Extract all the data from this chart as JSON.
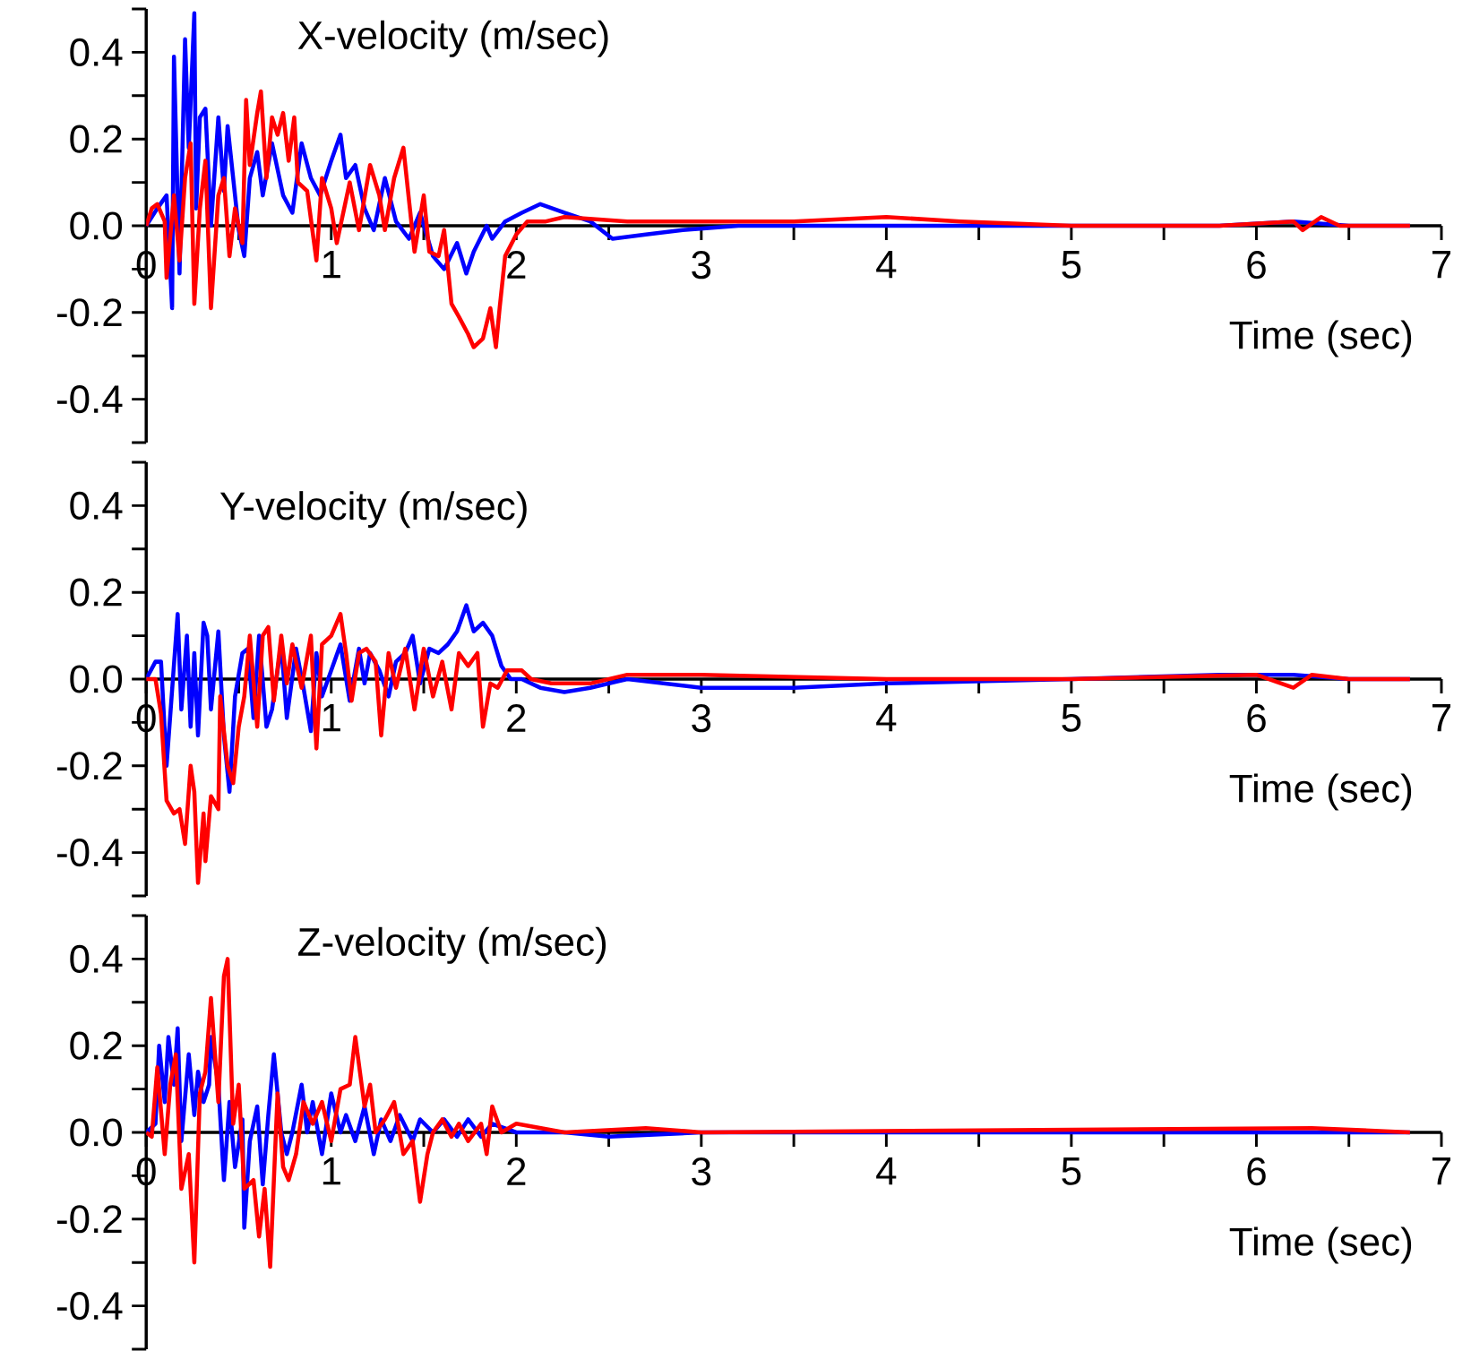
{
  "chart_data": [
    {
      "type": "line",
      "title": "X-velocity (m/sec)",
      "xlabel": "Time (sec)",
      "xlim": [
        0,
        7
      ],
      "ylim": [
        -0.5,
        0.5
      ],
      "xticks": [
        0,
        {
          "value": 0.5,
          "label": null
        },
        1,
        {
          "value": 1.5,
          "label": null
        },
        2,
        {
          "value": 2.5,
          "label": null
        },
        3,
        {
          "value": 3.5,
          "label": null
        },
        4,
        {
          "value": 4.5,
          "label": null
        },
        5,
        {
          "value": 5.5,
          "label": null
        },
        6,
        {
          "value": 6.5,
          "label": null
        },
        7
      ],
      "yticks": [
        {
          "value": -0.5,
          "label": null
        },
        {
          "value": -0.4,
          "label": "-0.4"
        },
        {
          "value": -0.3,
          "label": null
        },
        {
          "value": -0.2,
          "label": "-0.2"
        },
        {
          "value": -0.1,
          "label": null
        },
        {
          "value": 0,
          "label": "0.0"
        },
        {
          "value": 0.1,
          "label": null
        },
        {
          "value": 0.2,
          "label": "0.2"
        },
        {
          "value": 0.3,
          "label": null
        },
        {
          "value": 0.4,
          "label": "0.4"
        },
        {
          "value": 0.5,
          "label": null
        }
      ],
      "series": [
        {
          "color": "#0000ff",
          "x": [
            0,
            0.06,
            0.11,
            0.14,
            0.15,
            0.18,
            0.21,
            0.23,
            0.26,
            0.27,
            0.29,
            0.32,
            0.35,
            0.39,
            0.42,
            0.44,
            0.47,
            0.5,
            0.53,
            0.56,
            0.6,
            0.63,
            0.68,
            0.74,
            0.79,
            0.84,
            0.89,
            0.94,
            1.0,
            1.05,
            1.08,
            1.13,
            1.18,
            1.23,
            1.29,
            1.35,
            1.42,
            1.48,
            1.55,
            1.61,
            1.68,
            1.73,
            1.77,
            1.84,
            1.87,
            1.94,
            2.03,
            2.13,
            2.26,
            2.4,
            2.52,
            2.7,
            2.9,
            3.2,
            4.0,
            5.0,
            5.8,
            6.2,
            6.5,
            6.83
          ],
          "values": [
            0,
            0.04,
            0.07,
            -0.19,
            0.39,
            -0.11,
            0.43,
            0.18,
            0.49,
            0.04,
            0.25,
            0.27,
            0,
            0.25,
            0.08,
            0.23,
            0.11,
            -0.01,
            -0.07,
            0.11,
            0.17,
            0.07,
            0.19,
            0.07,
            0.03,
            0.19,
            0.11,
            0.07,
            0.15,
            0.21,
            0.11,
            0.14,
            0.04,
            -0.01,
            0.11,
            0.01,
            -0.03,
            0.03,
            -0.07,
            -0.1,
            -0.04,
            -0.11,
            -0.06,
            0,
            -0.03,
            0.01,
            0.03,
            0.05,
            0.03,
            0.01,
            -0.03,
            -0.02,
            -0.01,
            0,
            0,
            0,
            0,
            0.01,
            0,
            0
          ]
        },
        {
          "color": "#ff0000",
          "x": [
            0,
            0.03,
            0.06,
            0.1,
            0.11,
            0.15,
            0.18,
            0.21,
            0.24,
            0.26,
            0.29,
            0.32,
            0.35,
            0.39,
            0.42,
            0.45,
            0.48,
            0.52,
            0.54,
            0.56,
            0.6,
            0.62,
            0.65,
            0.68,
            0.71,
            0.74,
            0.77,
            0.8,
            0.82,
            0.87,
            0.92,
            0.95,
            1.0,
            1.03,
            1.1,
            1.15,
            1.21,
            1.26,
            1.29,
            1.34,
            1.39,
            1.42,
            1.45,
            1.5,
            1.53,
            1.58,
            1.61,
            1.65,
            1.69,
            1.74,
            1.77,
            1.82,
            1.86,
            1.89,
            1.91,
            1.94,
            2.0,
            2.06,
            2.16,
            2.26,
            2.6,
            3.0,
            3.5,
            4.0,
            4.4,
            5.0,
            5.8,
            6.2,
            6.25,
            6.35,
            6.45,
            6.83
          ],
          "values": [
            0,
            0.04,
            0.05,
            0.01,
            -0.12,
            0.07,
            -0.08,
            0.11,
            0.19,
            -0.18,
            0.04,
            0.15,
            -0.19,
            0.07,
            0.11,
            -0.07,
            0.04,
            -0.04,
            0.29,
            0.14,
            0.26,
            0.31,
            0.11,
            0.25,
            0.21,
            0.26,
            0.15,
            0.25,
            0.1,
            0.08,
            -0.08,
            0.11,
            0.04,
            -0.04,
            0.1,
            -0.01,
            0.14,
            0.07,
            -0.01,
            0.11,
            0.18,
            0.06,
            -0.06,
            0.07,
            -0.06,
            -0.07,
            -0.01,
            -0.18,
            -0.21,
            -0.25,
            -0.28,
            -0.26,
            -0.19,
            -0.28,
            -0.19,
            -0.07,
            -0.02,
            0.01,
            0.01,
            0.02,
            0.01,
            0.01,
            0.01,
            0.02,
            0.01,
            0,
            0,
            0.01,
            -0.01,
            0.02,
            0,
            0
          ]
        }
      ]
    },
    {
      "type": "line",
      "title": "Y-velocity (m/sec)",
      "xlabel": "Time (sec)",
      "xlim": [
        0,
        7
      ],
      "ylim": [
        -0.5,
        0.5
      ],
      "xticks": [
        0,
        {
          "value": 0.5,
          "label": null
        },
        1,
        {
          "value": 1.5,
          "label": null
        },
        2,
        {
          "value": 2.5,
          "label": null
        },
        3,
        {
          "value": 3.5,
          "label": null
        },
        4,
        {
          "value": 4.5,
          "label": null
        },
        5,
        {
          "value": 5.5,
          "label": null
        },
        6,
        {
          "value": 6.5,
          "label": null
        },
        7
      ],
      "yticks": [
        {
          "value": -0.5,
          "label": null
        },
        {
          "value": -0.4,
          "label": "-0.4"
        },
        {
          "value": -0.3,
          "label": null
        },
        {
          "value": -0.2,
          "label": "-0.2"
        },
        {
          "value": -0.1,
          "label": null
        },
        {
          "value": 0,
          "label": "0.0"
        },
        {
          "value": 0.1,
          "label": null
        },
        {
          "value": 0.2,
          "label": "0.2"
        },
        {
          "value": 0.3,
          "label": null
        },
        {
          "value": 0.4,
          "label": "0.4"
        },
        {
          "value": 0.5,
          "label": null
        }
      ],
      "series": [
        {
          "color": "#0000ff",
          "x": [
            0,
            0.05,
            0.08,
            0.11,
            0.17,
            0.19,
            0.22,
            0.24,
            0.26,
            0.28,
            0.31,
            0.33,
            0.35,
            0.39,
            0.42,
            0.45,
            0.48,
            0.52,
            0.55,
            0.58,
            0.61,
            0.65,
            0.68,
            0.73,
            0.76,
            0.81,
            0.85,
            0.89,
            0.92,
            0.95,
            1.0,
            1.05,
            1.1,
            1.15,
            1.18,
            1.21,
            1.26,
            1.31,
            1.35,
            1.4,
            1.44,
            1.48,
            1.53,
            1.58,
            1.63,
            1.68,
            1.73,
            1.77,
            1.82,
            1.87,
            1.92,
            1.97,
            2.03,
            2.13,
            2.26,
            2.4,
            2.6,
            2.8,
            3.0,
            3.5,
            4.0,
            5.0,
            5.8,
            6.2,
            6.5,
            6.83
          ],
          "values": [
            0,
            0.04,
            0.04,
            -0.2,
            0.15,
            -0.07,
            0.1,
            -0.11,
            0.06,
            -0.13,
            0.13,
            0.1,
            -0.07,
            0.11,
            -0.13,
            -0.26,
            -0.04,
            0.06,
            0.07,
            -0.09,
            0.1,
            -0.11,
            -0.07,
            0.08,
            -0.09,
            0.07,
            -0.02,
            -0.12,
            0.06,
            -0.04,
            0.02,
            0.08,
            -0.05,
            0.07,
            -0.01,
            0.06,
            0.02,
            -0.04,
            0.04,
            0.06,
            0.1,
            -0.01,
            0.07,
            0.06,
            0.08,
            0.11,
            0.17,
            0.11,
            0.13,
            0.1,
            0.03,
            0,
            0,
            -0.02,
            -0.03,
            -0.02,
            0,
            -0.01,
            -0.02,
            -0.02,
            -0.01,
            0,
            0.01,
            0.01,
            0,
            0
          ]
        },
        {
          "color": "#ff0000",
          "x": [
            0,
            0.05,
            0.08,
            0.11,
            0.15,
            0.18,
            0.21,
            0.24,
            0.26,
            0.28,
            0.31,
            0.32,
            0.35,
            0.39,
            0.4,
            0.44,
            0.47,
            0.5,
            0.53,
            0.56,
            0.6,
            0.63,
            0.66,
            0.69,
            0.73,
            0.76,
            0.79,
            0.84,
            0.89,
            0.92,
            0.95,
            1.0,
            1.05,
            1.08,
            1.11,
            1.15,
            1.19,
            1.24,
            1.27,
            1.31,
            1.35,
            1.4,
            1.45,
            1.5,
            1.55,
            1.6,
            1.65,
            1.69,
            1.74,
            1.79,
            1.82,
            1.86,
            1.9,
            1.95,
            2.03,
            2.08,
            2.19,
            2.26,
            2.4,
            2.6,
            3.0,
            4.0,
            5.0,
            6.0,
            6.2,
            6.3,
            6.5,
            6.83
          ],
          "values": [
            0,
            0,
            -0.08,
            -0.28,
            -0.31,
            -0.3,
            -0.38,
            -0.2,
            -0.26,
            -0.47,
            -0.31,
            -0.42,
            -0.27,
            -0.3,
            -0.04,
            -0.2,
            -0.24,
            -0.11,
            -0.04,
            0.1,
            -0.11,
            0.1,
            0.12,
            -0.05,
            0.1,
            -0.01,
            0.08,
            -0.02,
            0.1,
            -0.16,
            0.08,
            0.1,
            0.15,
            0.06,
            -0.05,
            0.06,
            0.07,
            0.04,
            -0.13,
            0.06,
            -0.02,
            0.07,
            -0.07,
            0.07,
            -0.04,
            0.04,
            -0.07,
            0.06,
            0.03,
            0.06,
            -0.11,
            -0.01,
            -0.02,
            0.02,
            0.02,
            0,
            -0.01,
            -0.01,
            -0.01,
            0.01,
            0.01,
            0,
            0,
            0.01,
            -0.02,
            0.01,
            0,
            0
          ]
        }
      ]
    },
    {
      "type": "line",
      "title": "Z-velocity (m/sec)",
      "xlabel": "Time (sec)",
      "xlim": [
        0,
        7
      ],
      "ylim": [
        -0.5,
        0.5
      ],
      "xticks": [
        0,
        {
          "value": 0.5,
          "label": null
        },
        1,
        {
          "value": 1.5,
          "label": null
        },
        2,
        {
          "value": 2.5,
          "label": null
        },
        3,
        {
          "value": 3.5,
          "label": null
        },
        4,
        {
          "value": 4.5,
          "label": null
        },
        5,
        {
          "value": 5.5,
          "label": null
        },
        6,
        {
          "value": 6.5,
          "label": null
        },
        7
      ],
      "yticks": [
        {
          "value": -0.5,
          "label": null
        },
        {
          "value": -0.4,
          "label": "-0.4"
        },
        {
          "value": -0.3,
          "label": null
        },
        {
          "value": -0.2,
          "label": "-0.2"
        },
        {
          "value": -0.1,
          "label": null
        },
        {
          "value": 0,
          "label": "0.0"
        },
        {
          "value": 0.1,
          "label": null
        },
        {
          "value": 0.2,
          "label": "0.2"
        },
        {
          "value": 0.3,
          "label": null
        },
        {
          "value": 0.4,
          "label": "0.4"
        },
        {
          "value": 0.5,
          "label": null
        }
      ],
      "series": [
        {
          "color": "#0000ff",
          "x": [
            0,
            0.05,
            0.07,
            0.1,
            0.12,
            0.15,
            0.17,
            0.19,
            0.23,
            0.26,
            0.28,
            0.31,
            0.34,
            0.35,
            0.39,
            0.42,
            0.45,
            0.48,
            0.52,
            0.53,
            0.56,
            0.6,
            0.63,
            0.66,
            0.69,
            0.73,
            0.76,
            0.79,
            0.84,
            0.87,
            0.9,
            0.95,
            1.0,
            1.05,
            1.08,
            1.13,
            1.18,
            1.23,
            1.27,
            1.32,
            1.37,
            1.44,
            1.48,
            1.55,
            1.61,
            1.68,
            1.74,
            1.81,
            1.87,
            2.0,
            2.26,
            2.5,
            3.0,
            6.83
          ],
          "values": [
            0,
            0.02,
            0.2,
            0.07,
            0.22,
            0.11,
            0.24,
            -0.02,
            0.18,
            0.04,
            0.14,
            0.07,
            0.11,
            0.22,
            0.11,
            -0.11,
            0.07,
            -0.08,
            0.03,
            -0.22,
            -0.02,
            0.06,
            -0.12,
            0.04,
            0.18,
            0,
            -0.05,
            0,
            0.11,
            0,
            0.07,
            -0.05,
            0.09,
            0,
            0.04,
            -0.02,
            0.06,
            -0.05,
            0.03,
            -0.02,
            0.04,
            -0.02,
            0.03,
            0,
            0.03,
            -0.01,
            0.03,
            -0.01,
            0.02,
            0,
            0,
            -0.01,
            0,
            0
          ]
        },
        {
          "color": "#ff0000",
          "x": [
            0,
            0.03,
            0.06,
            0.1,
            0.13,
            0.16,
            0.19,
            0.23,
            0.26,
            0.29,
            0.32,
            0.35,
            0.39,
            0.42,
            0.44,
            0.47,
            0.5,
            0.53,
            0.58,
            0.61,
            0.64,
            0.67,
            0.71,
            0.74,
            0.77,
            0.81,
            0.85,
            0.9,
            0.95,
            1.0,
            1.05,
            1.1,
            1.13,
            1.18,
            1.21,
            1.24,
            1.29,
            1.34,
            1.39,
            1.44,
            1.48,
            1.52,
            1.55,
            1.6,
            1.65,
            1.69,
            1.74,
            1.81,
            1.84,
            1.87,
            1.92,
            2.0,
            2.26,
            2.7,
            3.0,
            6.3,
            6.83
          ],
          "values": [
            0,
            -0.01,
            0.15,
            -0.05,
            0.11,
            0.18,
            -0.13,
            -0.05,
            -0.3,
            0.09,
            0.14,
            0.31,
            0.07,
            0.36,
            0.4,
            0.02,
            0.11,
            -0.13,
            -0.11,
            -0.24,
            -0.13,
            -0.31,
            0.09,
            -0.08,
            -0.11,
            -0.05,
            0.07,
            0.02,
            0.07,
            -0.02,
            0.1,
            0.11,
            0.22,
            0.06,
            0.11,
            0,
            0.03,
            0.07,
            -0.05,
            -0.02,
            -0.16,
            -0.05,
            0,
            0.03,
            -0.01,
            0.02,
            -0.02,
            0.02,
            -0.05,
            0.06,
            0,
            0.02,
            0,
            0.01,
            0,
            0.01,
            0
          ]
        }
      ]
    }
  ]
}
